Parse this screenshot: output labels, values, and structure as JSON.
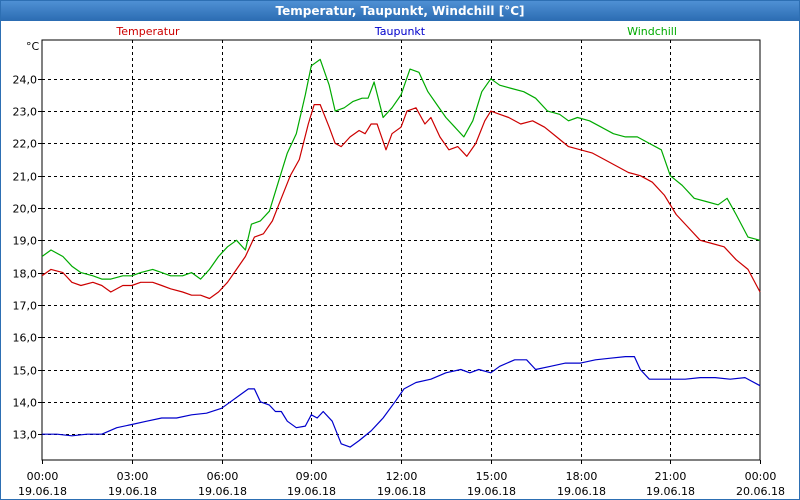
{
  "window": {
    "title": "Temperatur, Taupunkt, Windchill [°C]"
  },
  "chart_data": {
    "type": "line",
    "title": "Temperatur, Taupunkt, Windchill [°C]",
    "ylabel": "°C",
    "ylim": [
      12.2,
      25.2
    ],
    "yticks": [
      13.0,
      14.0,
      15.0,
      16.0,
      17.0,
      18.0,
      19.0,
      20.0,
      21.0,
      22.0,
      23.0,
      24.0
    ],
    "ytick_labels": [
      "13,0",
      "14,0",
      "15,0",
      "16,0",
      "17,0",
      "18,0",
      "19,0",
      "20,0",
      "21,0",
      "22,0",
      "23,0",
      "24,0"
    ],
    "xlim": [
      0,
      24
    ],
    "xticks": [
      0,
      3,
      6,
      9,
      12,
      15,
      18,
      21,
      24
    ],
    "xtick_labels": [
      {
        "time": "00:00",
        "date": "19.06.18"
      },
      {
        "time": "03:00",
        "date": "19.06.18"
      },
      {
        "time": "06:00",
        "date": "19.06.18"
      },
      {
        "time": "09:00",
        "date": "19.06.18"
      },
      {
        "time": "12:00",
        "date": "19.06.18"
      },
      {
        "time": "15:00",
        "date": "19.06.18"
      },
      {
        "time": "18:00",
        "date": "19.06.18"
      },
      {
        "time": "21:00",
        "date": "19.06.18"
      },
      {
        "time": "00:00",
        "date": "20.06.18"
      }
    ],
    "grid": true,
    "legend": "top",
    "series": [
      {
        "name": "Temperatur",
        "color": "#cc0000",
        "points": [
          [
            0,
            17.9
          ],
          [
            0.3,
            18.1
          ],
          [
            0.7,
            18.0
          ],
          [
            1.0,
            17.7
          ],
          [
            1.3,
            17.6
          ],
          [
            1.7,
            17.7
          ],
          [
            2.0,
            17.6
          ],
          [
            2.3,
            17.4
          ],
          [
            2.7,
            17.6
          ],
          [
            3.0,
            17.6
          ],
          [
            3.3,
            17.7
          ],
          [
            3.7,
            17.7
          ],
          [
            4.0,
            17.6
          ],
          [
            4.3,
            17.5
          ],
          [
            4.7,
            17.4
          ],
          [
            5.0,
            17.3
          ],
          [
            5.3,
            17.3
          ],
          [
            5.6,
            17.2
          ],
          [
            5.9,
            17.4
          ],
          [
            6.2,
            17.7
          ],
          [
            6.5,
            18.1
          ],
          [
            6.8,
            18.5
          ],
          [
            7.1,
            19.1
          ],
          [
            7.4,
            19.2
          ],
          [
            7.7,
            19.6
          ],
          [
            8.0,
            20.3
          ],
          [
            8.3,
            21.0
          ],
          [
            8.6,
            21.5
          ],
          [
            8.9,
            22.6
          ],
          [
            9.1,
            23.2
          ],
          [
            9.3,
            23.2
          ],
          [
            9.6,
            22.5
          ],
          [
            9.8,
            22.0
          ],
          [
            10.0,
            21.9
          ],
          [
            10.3,
            22.2
          ],
          [
            10.6,
            22.4
          ],
          [
            10.8,
            22.3
          ],
          [
            11.0,
            22.6
          ],
          [
            11.2,
            22.6
          ],
          [
            11.5,
            21.8
          ],
          [
            11.7,
            22.3
          ],
          [
            12.0,
            22.5
          ],
          [
            12.2,
            23.0
          ],
          [
            12.5,
            23.1
          ],
          [
            12.8,
            22.6
          ],
          [
            13.0,
            22.8
          ],
          [
            13.3,
            22.2
          ],
          [
            13.6,
            21.8
          ],
          [
            13.9,
            21.9
          ],
          [
            14.2,
            21.6
          ],
          [
            14.5,
            22.0
          ],
          [
            14.8,
            22.7
          ],
          [
            15.0,
            23.0
          ],
          [
            15.3,
            22.9
          ],
          [
            15.6,
            22.8
          ],
          [
            16.0,
            22.6
          ],
          [
            16.4,
            22.7
          ],
          [
            16.8,
            22.5
          ],
          [
            17.2,
            22.2
          ],
          [
            17.6,
            21.9
          ],
          [
            18.0,
            21.8
          ],
          [
            18.4,
            21.7
          ],
          [
            18.8,
            21.5
          ],
          [
            19.2,
            21.3
          ],
          [
            19.6,
            21.1
          ],
          [
            20.0,
            21.0
          ],
          [
            20.4,
            20.8
          ],
          [
            20.8,
            20.4
          ],
          [
            21.2,
            19.8
          ],
          [
            21.6,
            19.4
          ],
          [
            22.0,
            19.0
          ],
          [
            22.4,
            18.9
          ],
          [
            22.8,
            18.8
          ],
          [
            23.2,
            18.4
          ],
          [
            23.6,
            18.1
          ],
          [
            24.0,
            17.4
          ]
        ]
      },
      {
        "name": "Taupunkt",
        "color": "#0000cc",
        "points": [
          [
            0,
            13.0
          ],
          [
            0.5,
            13.0
          ],
          [
            1.0,
            12.95
          ],
          [
            1.5,
            13.0
          ],
          [
            2.0,
            13.0
          ],
          [
            2.5,
            13.2
          ],
          [
            3.0,
            13.3
          ],
          [
            3.5,
            13.4
          ],
          [
            4.0,
            13.5
          ],
          [
            4.5,
            13.5
          ],
          [
            5.0,
            13.6
          ],
          [
            5.5,
            13.65
          ],
          [
            6.0,
            13.8
          ],
          [
            6.3,
            14.0
          ],
          [
            6.6,
            14.2
          ],
          [
            6.9,
            14.4
          ],
          [
            7.1,
            14.4
          ],
          [
            7.3,
            14.0
          ],
          [
            7.6,
            13.9
          ],
          [
            7.8,
            13.7
          ],
          [
            8.0,
            13.7
          ],
          [
            8.2,
            13.4
          ],
          [
            8.5,
            13.2
          ],
          [
            8.8,
            13.25
          ],
          [
            9.0,
            13.6
          ],
          [
            9.2,
            13.5
          ],
          [
            9.4,
            13.7
          ],
          [
            9.7,
            13.4
          ],
          [
            10.0,
            12.7
          ],
          [
            10.3,
            12.6
          ],
          [
            10.6,
            12.8
          ],
          [
            11.0,
            13.1
          ],
          [
            11.4,
            13.5
          ],
          [
            11.8,
            14.0
          ],
          [
            12.1,
            14.4
          ],
          [
            12.5,
            14.6
          ],
          [
            13.0,
            14.7
          ],
          [
            13.5,
            14.9
          ],
          [
            14.0,
            15.0
          ],
          [
            14.3,
            14.9
          ],
          [
            14.6,
            15.0
          ],
          [
            15.0,
            14.9
          ],
          [
            15.3,
            15.1
          ],
          [
            15.8,
            15.3
          ],
          [
            16.2,
            15.3
          ],
          [
            16.5,
            15.0
          ],
          [
            17.0,
            15.1
          ],
          [
            17.5,
            15.2
          ],
          [
            18.0,
            15.2
          ],
          [
            18.5,
            15.3
          ],
          [
            19.0,
            15.35
          ],
          [
            19.5,
            15.4
          ],
          [
            19.8,
            15.4
          ],
          [
            20.0,
            15.0
          ],
          [
            20.3,
            14.7
          ],
          [
            21.0,
            14.7
          ],
          [
            21.5,
            14.7
          ],
          [
            22.0,
            14.75
          ],
          [
            22.5,
            14.75
          ],
          [
            23.0,
            14.7
          ],
          [
            23.5,
            14.75
          ],
          [
            24.0,
            14.5
          ]
        ]
      },
      {
        "name": "Windchill",
        "color": "#00aa00",
        "points": [
          [
            0,
            18.5
          ],
          [
            0.3,
            18.7
          ],
          [
            0.7,
            18.5
          ],
          [
            1.0,
            18.2
          ],
          [
            1.3,
            18.0
          ],
          [
            1.7,
            17.9
          ],
          [
            2.0,
            17.8
          ],
          [
            2.3,
            17.8
          ],
          [
            2.7,
            17.9
          ],
          [
            3.0,
            17.9
          ],
          [
            3.3,
            18.0
          ],
          [
            3.7,
            18.1
          ],
          [
            4.0,
            18.0
          ],
          [
            4.3,
            17.9
          ],
          [
            4.7,
            17.9
          ],
          [
            5.0,
            18.0
          ],
          [
            5.3,
            17.8
          ],
          [
            5.6,
            18.1
          ],
          [
            5.9,
            18.5
          ],
          [
            6.2,
            18.8
          ],
          [
            6.5,
            19.0
          ],
          [
            6.8,
            18.7
          ],
          [
            7.0,
            19.5
          ],
          [
            7.3,
            19.6
          ],
          [
            7.6,
            19.9
          ],
          [
            7.9,
            20.8
          ],
          [
            8.2,
            21.7
          ],
          [
            8.5,
            22.3
          ],
          [
            8.8,
            23.5
          ],
          [
            9.0,
            24.4
          ],
          [
            9.3,
            24.6
          ],
          [
            9.6,
            23.8
          ],
          [
            9.8,
            23.0
          ],
          [
            10.1,
            23.1
          ],
          [
            10.4,
            23.3
          ],
          [
            10.7,
            23.4
          ],
          [
            10.9,
            23.4
          ],
          [
            11.1,
            23.9
          ],
          [
            11.4,
            22.8
          ],
          [
            11.7,
            23.1
          ],
          [
            12.0,
            23.5
          ],
          [
            12.3,
            24.3
          ],
          [
            12.6,
            24.2
          ],
          [
            12.9,
            23.6
          ],
          [
            13.2,
            23.2
          ],
          [
            13.5,
            22.8
          ],
          [
            13.8,
            22.5
          ],
          [
            14.1,
            22.2
          ],
          [
            14.4,
            22.7
          ],
          [
            14.7,
            23.6
          ],
          [
            15.0,
            24.0
          ],
          [
            15.3,
            23.8
          ],
          [
            15.7,
            23.7
          ],
          [
            16.1,
            23.6
          ],
          [
            16.5,
            23.4
          ],
          [
            16.9,
            23.0
          ],
          [
            17.3,
            22.9
          ],
          [
            17.6,
            22.7
          ],
          [
            17.9,
            22.8
          ],
          [
            18.3,
            22.7
          ],
          [
            18.7,
            22.5
          ],
          [
            19.1,
            22.3
          ],
          [
            19.5,
            22.2
          ],
          [
            19.9,
            22.2
          ],
          [
            20.3,
            22.0
          ],
          [
            20.7,
            21.8
          ],
          [
            21.0,
            21.0
          ],
          [
            21.4,
            20.7
          ],
          [
            21.8,
            20.3
          ],
          [
            22.2,
            20.2
          ],
          [
            22.6,
            20.1
          ],
          [
            22.9,
            20.3
          ],
          [
            23.2,
            19.8
          ],
          [
            23.6,
            19.1
          ],
          [
            24.0,
            19.0
          ]
        ]
      }
    ]
  }
}
